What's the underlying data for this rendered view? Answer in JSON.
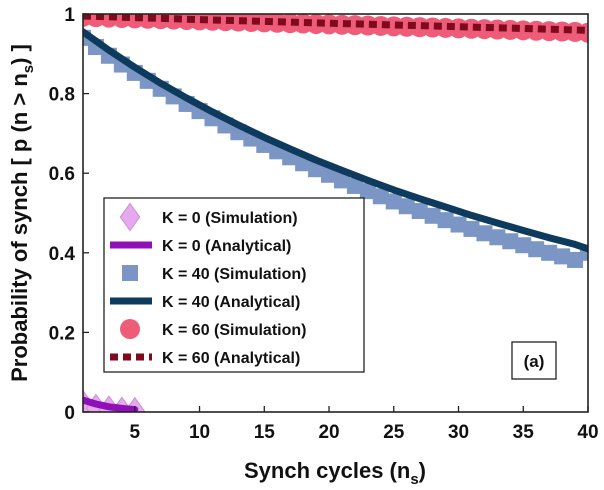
{
  "chart_data": {
    "type": "line",
    "xlabel": "Synch cycles (n",
    "xlabel_sub": "s",
    "xlabel_end": ")",
    "ylabel": "Probability of synch [ p (n > n",
    "ylabel_sub": "s",
    "ylabel_end": ") ]",
    "xlim": [
      1,
      40
    ],
    "ylim": [
      0,
      1
    ],
    "xticks": [
      5,
      10,
      15,
      20,
      25,
      30,
      35,
      40
    ],
    "yticks": [
      0,
      0.2,
      0.4,
      0.6,
      0.8,
      1
    ],
    "ytick_labels": [
      "0",
      "0.2",
      "0.4",
      "0.6",
      "0.8",
      "1"
    ],
    "grid": false,
    "legend_position": "left-middle",
    "annotation": "(a)",
    "series": [
      {
        "name": "K = 0 (Simulation)",
        "kind": "simulation",
        "marker": "diamond",
        "color": "#e7a9ee",
        "x": [
          1,
          2,
          3,
          4,
          5
        ],
        "y": [
          0.02,
          0.01,
          0.006,
          0.003,
          0.002
        ]
      },
      {
        "name": "K = 0 (Analytical)",
        "kind": "analytical",
        "line": "solid",
        "color": "#8f0fb8",
        "x": [
          1,
          2,
          3,
          4,
          5
        ],
        "y": [
          0.03,
          0.02,
          0.013,
          0.009,
          0.006
        ]
      },
      {
        "name": "K = 40 (Simulation)",
        "kind": "simulation",
        "marker": "square",
        "color": "#7b96c4",
        "x": [
          1,
          2,
          3,
          4,
          5,
          6,
          7,
          8,
          9,
          10,
          11,
          12,
          13,
          14,
          15,
          16,
          17,
          18,
          19,
          20,
          21,
          22,
          23,
          24,
          25,
          26,
          27,
          28,
          29,
          30,
          31,
          32,
          33,
          34,
          35,
          36,
          37,
          38,
          39,
          40
        ],
        "y": [
          0.94,
          0.917,
          0.895,
          0.873,
          0.852,
          0.832,
          0.812,
          0.793,
          0.774,
          0.756,
          0.738,
          0.72,
          0.703,
          0.687,
          0.671,
          0.655,
          0.64,
          0.625,
          0.61,
          0.596,
          0.582,
          0.568,
          0.555,
          0.542,
          0.529,
          0.517,
          0.505,
          0.493,
          0.482,
          0.471,
          0.46,
          0.449,
          0.439,
          0.429,
          0.419,
          0.409,
          0.4,
          0.391,
          0.382,
          0.4
        ]
      },
      {
        "name": "K = 40 (Analytical)",
        "kind": "analytical",
        "line": "solid",
        "color": "#0e3a5e",
        "x": [
          1,
          3,
          5,
          7,
          9,
          11,
          13,
          15,
          17,
          19,
          21,
          23,
          25,
          27,
          29,
          31,
          33,
          35,
          37,
          39,
          40
        ],
        "y": [
          0.955,
          0.909,
          0.866,
          0.826,
          0.789,
          0.754,
          0.721,
          0.69,
          0.661,
          0.633,
          0.607,
          0.582,
          0.558,
          0.536,
          0.515,
          0.494,
          0.475,
          0.456,
          0.438,
          0.421,
          0.41
        ]
      },
      {
        "name": "K = 60 (Simulation)",
        "kind": "simulation",
        "marker": "circle",
        "color": "#ef5c79",
        "x": [
          1,
          2,
          3,
          4,
          5,
          6,
          7,
          8,
          9,
          10,
          11,
          12,
          13,
          14,
          15,
          16,
          17,
          18,
          19,
          20,
          21,
          22,
          23,
          24,
          25,
          26,
          27,
          28,
          29,
          30,
          31,
          32,
          33,
          34,
          35,
          36,
          37,
          38,
          39,
          40
        ],
        "y": [
          0.993,
          0.992,
          0.991,
          0.99,
          0.989,
          0.988,
          0.987,
          0.986,
          0.985,
          0.984,
          0.983,
          0.982,
          0.981,
          0.98,
          0.979,
          0.978,
          0.977,
          0.976,
          0.975,
          0.974,
          0.973,
          0.972,
          0.971,
          0.97,
          0.969,
          0.968,
          0.967,
          0.966,
          0.965,
          0.964,
          0.963,
          0.962,
          0.961,
          0.96,
          0.959,
          0.958,
          0.957,
          0.956,
          0.955,
          0.953
        ]
      },
      {
        "name": "K = 60 (Analytical)",
        "kind": "analytical",
        "line": "dotted",
        "color": "#7e0a1c",
        "x": [
          1,
          10,
          20,
          30,
          40
        ],
        "y": [
          0.995,
          0.986,
          0.977,
          0.968,
          0.959
        ]
      }
    ]
  }
}
